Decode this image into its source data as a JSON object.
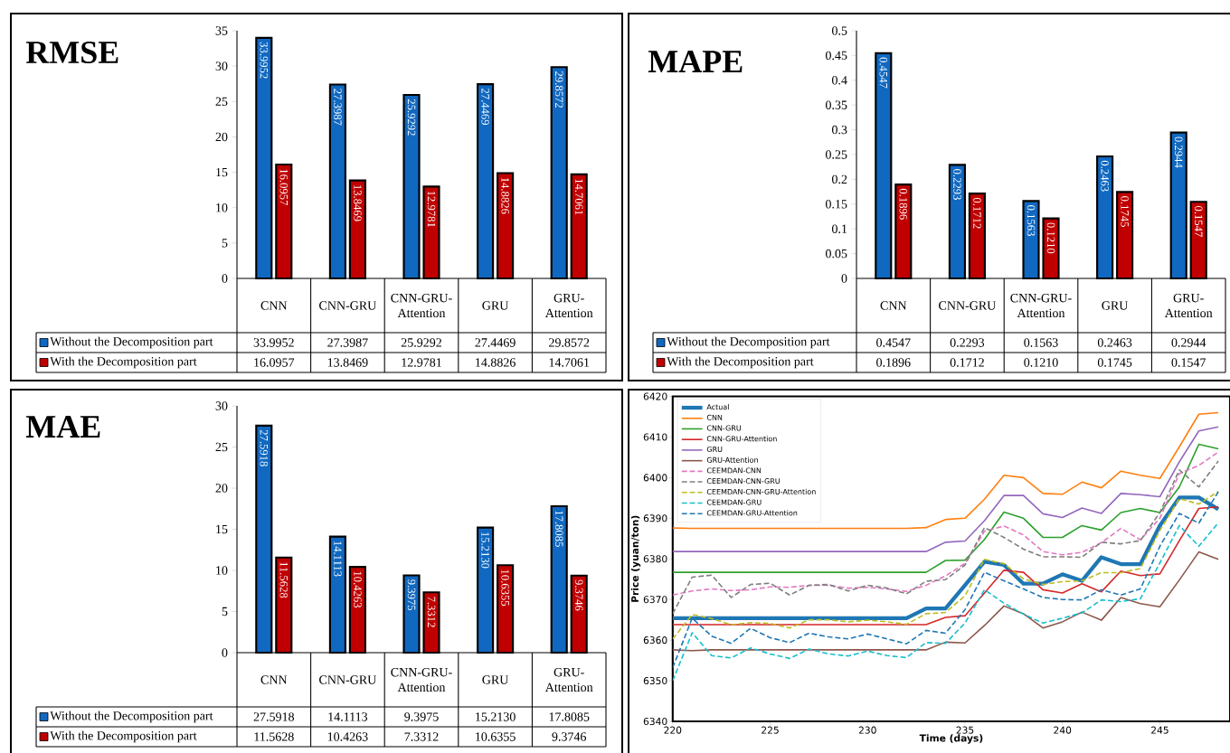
{
  "chart_data": [
    {
      "type": "bar",
      "title": "RMSE",
      "categories": [
        "CNN",
        "CNN-GRU",
        "CNN-GRU-Attention",
        "GRU",
        "GRU-Attention"
      ],
      "ylim": [
        0,
        35
      ],
      "yticks": [
        0,
        5,
        10,
        15,
        20,
        25,
        30,
        35
      ],
      "legend": "bottom",
      "series": [
        {
          "name": "Without the Decomposition part",
          "color": "#1068c0",
          "values": [
            33.9952,
            27.3987,
            25.9292,
            27.4469,
            29.8572
          ],
          "value_labels": [
            "33.9952",
            "27.3987",
            "25.9292",
            "27.4469",
            "29.8572"
          ]
        },
        {
          "name": "With the Decomposition part",
          "color": "#c00000",
          "values": [
            16.0957,
            13.8469,
            12.9781,
            14.8826,
            14.7061
          ],
          "value_labels": [
            "16.0957",
            "13.8469",
            "12.9781",
            "14.8826",
            "14.7061"
          ]
        }
      ]
    },
    {
      "type": "bar",
      "title": "MAPE",
      "categories": [
        "CNN",
        "CNN-GRU",
        "CNN-GRU-Attention",
        "GRU",
        "GRU-Attention"
      ],
      "ylim": [
        0,
        0.5
      ],
      "yticks": [
        0,
        0.05,
        0.1,
        0.15,
        0.2,
        0.25,
        0.3,
        0.35,
        0.4,
        0.45,
        0.5
      ],
      "legend": "bottom",
      "series": [
        {
          "name": "Without the Decomposition part",
          "color": "#1068c0",
          "values": [
            0.4547,
            0.2293,
            0.1563,
            0.2463,
            0.2944
          ],
          "value_labels": [
            "0.4547",
            "0.2293",
            "0.1563",
            "0.2463",
            "0.2944"
          ]
        },
        {
          "name": "With the Decomposition part",
          "color": "#c00000",
          "values": [
            0.1896,
            0.1712,
            0.121,
            0.1745,
            0.1547
          ],
          "value_labels": [
            "0.1896",
            "0.1712",
            "0.1210",
            "0.1745",
            "0.1547"
          ]
        }
      ]
    },
    {
      "type": "bar",
      "title": "MAE",
      "categories": [
        "CNN",
        "CNN-GRU",
        "CNN-GRU-Attention",
        "GRU",
        "GRU-Attention"
      ],
      "ylim": [
        0,
        30
      ],
      "yticks": [
        0,
        5,
        10,
        15,
        20,
        25,
        30
      ],
      "legend": "bottom",
      "series": [
        {
          "name": "Without the Decomposition part",
          "color": "#1068c0",
          "values": [
            27.5918,
            14.1113,
            9.3975,
            15.213,
            17.8085
          ],
          "value_labels": [
            "27.5918",
            "14.1113",
            "9.3975",
            "15.2130",
            "17.8085"
          ]
        },
        {
          "name": "With the Decomposition part",
          "color": "#c00000",
          "values": [
            11.5628,
            10.4263,
            7.3312,
            10.6355,
            9.3746
          ],
          "value_labels": [
            "11.5628",
            "10.4263",
            "7.3312",
            "10.6355",
            "9.3746"
          ]
        }
      ]
    },
    {
      "type": "line",
      "xlabel": "Time (days)",
      "ylabel": "Price (yuan/ton)",
      "xlim": [
        220,
        248.6
      ],
      "xticks": [
        220,
        225,
        230,
        235,
        240,
        245
      ],
      "ylim": [
        6340,
        6420
      ],
      "yticks": [
        6340,
        6350,
        6360,
        6370,
        6380,
        6390,
        6400,
        6410,
        6420
      ],
      "legend": "top left",
      "x": [
        220,
        221,
        222,
        223,
        224,
        225,
        226,
        227,
        228,
        229,
        230,
        231,
        232,
        233,
        234,
        235,
        236,
        237,
        238,
        239,
        240,
        241,
        242,
        243,
        244,
        245,
        246,
        247,
        248
      ],
      "series": [
        {
          "name": "Actual",
          "color": "#1f77b4",
          "line_style": "solid",
          "values": [
            6365.4,
            6365.4,
            6365.4,
            6365.4,
            6365.4,
            6365.4,
            6365.4,
            6365.4,
            6365.4,
            6365.4,
            6365.4,
            6365.4,
            6365.4,
            6367.8,
            6367.8,
            6373.5,
            6379.3,
            6378.5,
            6373.9,
            6373.9,
            6376.2,
            6374.6,
            6380.4,
            6378.7,
            6378.7,
            6388.2,
            6395.1,
            6395.1,
            6392.2
          ]
        },
        {
          "name": "CNN",
          "color": "#ff7f0e",
          "line_style": "solid",
          "values": [
            6387.6,
            6387.5,
            6387.5,
            6387.5,
            6387.5,
            6387.5,
            6387.5,
            6387.5,
            6387.5,
            6387.5,
            6387.5,
            6387.5,
            6387.5,
            6387.7,
            6389.7,
            6390.0,
            6394.7,
            6400.6,
            6400.0,
            6396.1,
            6395.9,
            6398.9,
            6397.5,
            6401.6,
            6400.6,
            6399.8,
            6407.6,
            6415.6,
            6416.0
          ]
        },
        {
          "name": "CNN-GRU",
          "color": "#2ca02c",
          "line_style": "solid",
          "values": [
            6376.7,
            6376.7,
            6376.7,
            6376.7,
            6376.7,
            6376.7,
            6376.7,
            6376.7,
            6376.7,
            6376.7,
            6376.7,
            6376.7,
            6376.7,
            6376.7,
            6379.6,
            6379.7,
            6384.8,
            6391.5,
            6390.0,
            6385.3,
            6385.3,
            6388.2,
            6387.1,
            6391.4,
            6392.4,
            6391.4,
            6397.7,
            6408.2,
            6407.1
          ]
        },
        {
          "name": "CNN-GRU-Attention",
          "color": "#d62728",
          "line_style": "solid",
          "values": [
            6363.8,
            6363.8,
            6363.8,
            6363.8,
            6363.8,
            6363.8,
            6363.8,
            6363.8,
            6363.8,
            6363.8,
            6363.8,
            6363.8,
            6363.8,
            6363.8,
            6365.6,
            6366.0,
            6371.6,
            6377.2,
            6376.7,
            6372.4,
            6371.6,
            6373.9,
            6371.9,
            6377.0,
            6375.9,
            6376.3,
            6384.5,
            6392.4,
            6392.8
          ]
        },
        {
          "name": "GRU",
          "color": "#9467bd",
          "line_style": "solid",
          "values": [
            6381.8,
            6381.8,
            6381.8,
            6381.8,
            6381.8,
            6381.8,
            6381.8,
            6381.8,
            6381.8,
            6381.8,
            6381.8,
            6381.8,
            6381.8,
            6381.8,
            6384.1,
            6384.4,
            6389.4,
            6395.6,
            6395.6,
            6391.1,
            6390.2,
            6392.5,
            6391.2,
            6396.1,
            6395.8,
            6395.3,
            6403.9,
            6411.5,
            6412.5
          ]
        },
        {
          "name": "GRU-Attention",
          "color": "#8c564b",
          "line_style": "solid",
          "values": [
            6357.6,
            6357.4,
            6357.6,
            6357.6,
            6357.6,
            6357.6,
            6357.6,
            6357.6,
            6357.6,
            6357.6,
            6357.6,
            6357.6,
            6357.6,
            6357.6,
            6359.5,
            6359.3,
            6363.6,
            6368.4,
            6366.5,
            6363.0,
            6364.5,
            6366.9,
            6364.9,
            6370.5,
            6369.0,
            6368.2,
            6374.8,
            6381.7,
            6379.9
          ]
        },
        {
          "name": "CEEMDAN-CNN",
          "color": "#e377c2",
          "line_style": "dashed",
          "values": [
            6371.1,
            6372.1,
            6372.6,
            6372.2,
            6372.4,
            6373.1,
            6373.0,
            6373.5,
            6373.5,
            6372.8,
            6373.0,
            6372.6,
            6372.0,
            6373.5,
            6375.8,
            6378.9,
            6386.8,
            6388.1,
            6385.9,
            6381.8,
            6381.0,
            6381.6,
            6384.0,
            6387.5,
            6384.7,
            6390.0,
            6401.0,
            6403.0,
            6406.3
          ]
        },
        {
          "name": "CEEMDAN-CNN-GRU",
          "color": "#7f7f7f",
          "line_style": "dashed",
          "values": [
            6366.5,
            6375.5,
            6376.0,
            6370.5,
            6373.7,
            6374.0,
            6371.1,
            6373.5,
            6373.7,
            6372.1,
            6373.5,
            6372.8,
            6371.4,
            6374.5,
            6374.9,
            6378.5,
            6387.7,
            6385.3,
            6382.4,
            6380.5,
            6380.5,
            6380.4,
            6384.1,
            6383.7,
            6384.5,
            6391.4,
            6401.9,
            6397.7,
            6404.1
          ]
        },
        {
          "name": "CEEMDAN-CNN-GRU-Attention",
          "color": "#bcbd22",
          "line_style": "dashed",
          "values": [
            6360.3,
            6366.3,
            6365.3,
            6363.8,
            6364.3,
            6364.1,
            6363.0,
            6365.0,
            6365.0,
            6364.5,
            6364.9,
            6364.5,
            6363.9,
            6366.5,
            6366.8,
            6370.9,
            6379.9,
            6378.8,
            6375.1,
            6373.7,
            6374.4,
            6374.6,
            6376.6,
            6376.6,
            6377.6,
            6387.0,
            6394.8,
            6393.5,
            6396.6
          ]
        },
        {
          "name": "CEEMDAN-GRU",
          "color": "#17becf",
          "line_style": "dashed",
          "values": [
            6350.0,
            6361.8,
            6356.2,
            6355.6,
            6358.1,
            6356.6,
            6355.5,
            6357.8,
            6356.6,
            6356.1,
            6357.3,
            6356.2,
            6355.7,
            6359.4,
            6359.2,
            6364.2,
            6372.4,
            6369.1,
            6366.4,
            6364.2,
            6365.4,
            6366.7,
            6369.9,
            6369.5,
            6370.2,
            6379.0,
            6388.2,
            6383.1,
            6388.9
          ]
        },
        {
          "name": "CEEMDAN-GRU-Attention",
          "color": "#1f77b4",
          "line_style": "dashed",
          "values": [
            6353.2,
            6365.4,
            6361.0,
            6359.2,
            6362.9,
            6360.6,
            6359.4,
            6361.7,
            6360.8,
            6360.3,
            6361.5,
            6360.3,
            6359.1,
            6362.4,
            6361.7,
            6367.5,
            6376.7,
            6374.6,
            6372.6,
            6370.5,
            6370.0,
            6369.9,
            6372.4,
            6371.1,
            6372.6,
            6383.1,
            6391.2,
            6388.8,
            6396.5
          ]
        }
      ]
    }
  ]
}
